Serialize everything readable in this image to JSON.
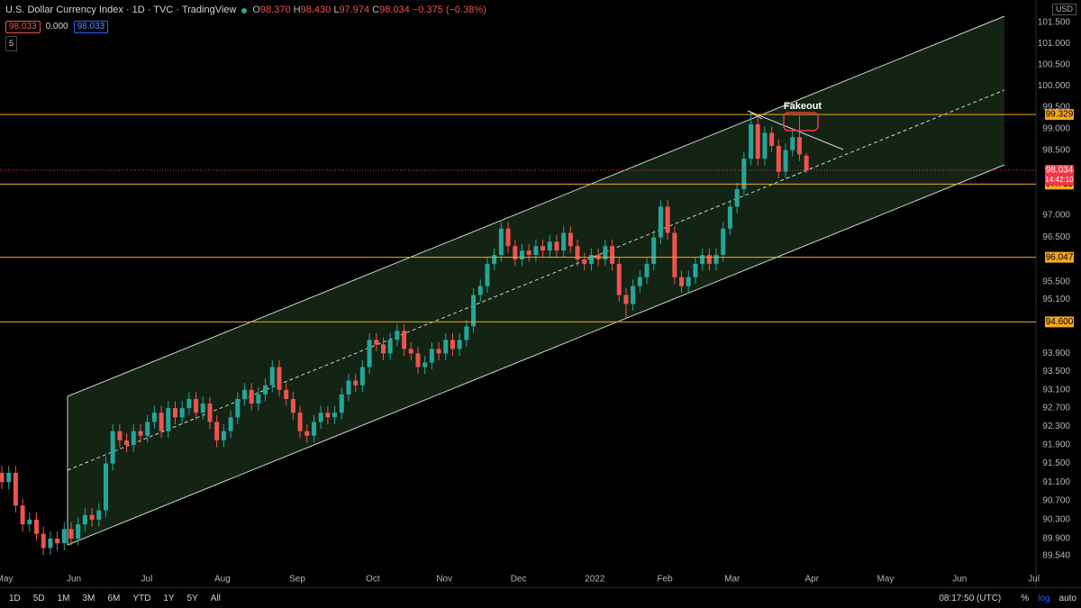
{
  "header": {
    "title": "U.S. Dollar Currency Index · 1D · TVC · TradingView",
    "legend": [
      {
        "key": "O",
        "value": "98.370"
      },
      {
        "key": "H",
        "value": "98.430"
      },
      {
        "key": "L",
        "value": "97.974"
      },
      {
        "key": "C",
        "value": "98.034"
      }
    ],
    "change": "−0.375 (−0.38%)",
    "indicators": [
      "98.033",
      "0.000",
      "98.033"
    ],
    "layers": "5",
    "currency": "USD"
  },
  "toolbar": {
    "ranges": [
      "1D",
      "5D",
      "1M",
      "3M",
      "6M",
      "YTD",
      "1Y",
      "5Y",
      "All"
    ],
    "time": "08:17:50 (UTC)",
    "scale_buttons": [
      "%",
      "log",
      "auto"
    ]
  },
  "chart_data": {
    "type": "candlestick",
    "log_scale": true,
    "grid": false,
    "colors": {
      "up": "#26a69a",
      "down": "#ef5350",
      "level": "#f5a623",
      "last": "#f23645"
    },
    "annotation": "Fakeout",
    "xlim": [
      -0.26,
      149.1
    ],
    "xticks": [
      {
        "value": 0.4,
        "label": "May"
      },
      {
        "value": 10.4,
        "label": "Jun"
      },
      {
        "value": 20.9,
        "label": "Jul"
      },
      {
        "value": 31.8,
        "label": "Aug"
      },
      {
        "value": 42.6,
        "label": "Sep"
      },
      {
        "value": 53.5,
        "label": "Oct"
      },
      {
        "value": 63.8,
        "label": "Nov"
      },
      {
        "value": 74.5,
        "label": "Dec"
      },
      {
        "value": 85.5,
        "label": "2022"
      },
      {
        "value": 95.6,
        "label": "Feb"
      },
      {
        "value": 105.3,
        "label": "Mar"
      },
      {
        "value": 116.8,
        "label": "Apr"
      },
      {
        "value": 127.4,
        "label": "May"
      },
      {
        "value": 138.1,
        "label": "Jun"
      },
      {
        "value": 148.8,
        "label": "Jul"
      }
    ],
    "ylim": [
      89.29,
      102.04
    ],
    "yticks": [
      {
        "value": 101.5,
        "label": "101.500"
      },
      {
        "value": 101,
        "label": "101.000"
      },
      {
        "value": 100.5,
        "label": "100.500"
      },
      {
        "value": 100,
        "label": "100.000"
      },
      {
        "value": 99.5,
        "label": "99.500"
      },
      {
        "value": 99,
        "label": "99.000"
      },
      {
        "value": 98.5,
        "label": "98.500"
      },
      {
        "value": 97,
        "label": "97.000"
      },
      {
        "value": 96.5,
        "label": "96.500"
      },
      {
        "value": 95.5,
        "label": "95.500"
      },
      {
        "value": 95.1,
        "label": "95.100"
      },
      {
        "value": 93.9,
        "label": "93.900"
      },
      {
        "value": 93.5,
        "label": "93.500"
      },
      {
        "value": 93.1,
        "label": "93.100"
      },
      {
        "value": 92.7,
        "label": "92.700"
      },
      {
        "value": 92.3,
        "label": "92.300"
      },
      {
        "value": 91.9,
        "label": "91.900"
      },
      {
        "value": 91.5,
        "label": "91.500"
      },
      {
        "value": 91.1,
        "label": "91.100"
      },
      {
        "value": 90.7,
        "label": "90.700"
      },
      {
        "value": 90.3,
        "label": "90.300"
      },
      {
        "value": 89.9,
        "label": "89.900"
      },
      {
        "value": 89.54,
        "label": "89.540"
      }
    ],
    "levels": [
      99.329,
      97.715,
      96.047,
      {
        "value": 94.6,
        "label": "94.600"
      }
    ],
    "last": {
      "value": 98.034,
      "countdown": "14:42:10"
    },
    "open": [
      91.3,
      91.1,
      91.3,
      90.6,
      90.2,
      90.3,
      90.0,
      89.7,
      89.9,
      89.8,
      90.1,
      89.9,
      90.2,
      90.4,
      90.3,
      90.5,
      91.5,
      92.2,
      92.0,
      91.9,
      92.2,
      92.1,
      92.4,
      92.6,
      92.2,
      92.7,
      92.5,
      92.7,
      92.9,
      92.6,
      92.8,
      92.4,
      92.0,
      92.2,
      92.5,
      92.9,
      93.1,
      92.8,
      93.0,
      93.2,
      93.6,
      93.1,
      92.9,
      92.6,
      92.2,
      92.1,
      92.4,
      92.6,
      92.5,
      92.6,
      93.0,
      93.3,
      93.2,
      93.6,
      94.2,
      94.1,
      93.9,
      94.2,
      94.4,
      94.0,
      93.9,
      93.6,
      93.7,
      94.0,
      93.9,
      94.2,
      94.0,
      94.2,
      94.5,
      95.2,
      95.4,
      95.9,
      96.1,
      96.7,
      96.3,
      96.0,
      96.2,
      96.1,
      96.3,
      96.2,
      96.4,
      96.2,
      96.6,
      96.3,
      96.0,
      95.9,
      96.1,
      96.0,
      96.3,
      95.9,
      95.2,
      95.0,
      95.4,
      95.6,
      95.9,
      96.5,
      97.2,
      96.6,
      95.6,
      95.4,
      95.6,
      95.9,
      96.1,
      95.9,
      96.1,
      96.7,
      97.2,
      97.6,
      98.3,
      99.1,
      98.3,
      98.9,
      98.6,
      98.0,
      98.5,
      98.8,
      98.37
    ],
    "high": [
      91.45,
      91.45,
      91.45,
      90.75,
      90.45,
      90.45,
      90.15,
      90.05,
      90.05,
      90.25,
      90.25,
      90.35,
      90.55,
      90.55,
      90.65,
      91.65,
      92.35,
      92.35,
      92.15,
      92.35,
      92.35,
      92.55,
      92.75,
      92.75,
      92.85,
      92.85,
      92.85,
      93.05,
      93.05,
      92.95,
      92.95,
      92.55,
      92.35,
      92.65,
      93.05,
      93.25,
      93.25,
      93.15,
      93.35,
      93.75,
      93.75,
      93.25,
      93.05,
      92.75,
      92.35,
      92.55,
      92.75,
      92.75,
      92.75,
      93.15,
      93.45,
      93.45,
      93.75,
      94.35,
      94.35,
      94.25,
      94.35,
      94.55,
      94.55,
      94.15,
      94.05,
      93.85,
      94.15,
      94.15,
      94.35,
      94.35,
      94.35,
      94.65,
      95.35,
      95.55,
      96.05,
      96.25,
      96.85,
      96.85,
      96.45,
      96.35,
      96.35,
      96.45,
      96.45,
      96.55,
      96.55,
      96.75,
      96.75,
      96.45,
      96.15,
      96.25,
      96.25,
      96.45,
      96.45,
      96.05,
      95.35,
      95.55,
      95.75,
      96.05,
      96.65,
      97.35,
      97.35,
      96.75,
      95.75,
      95.75,
      96.05,
      96.25,
      96.25,
      96.25,
      96.85,
      97.35,
      97.75,
      98.45,
      99.4,
      99.25,
      99.05,
      99.05,
      98.75,
      98.65,
      98.95,
      99.3,
      98.43
    ],
    "low": [
      90.95,
      90.95,
      90.45,
      90.05,
      90.05,
      89.85,
      89.55,
      89.55,
      89.65,
      89.65,
      89.75,
      89.75,
      90.05,
      90.15,
      90.15,
      90.35,
      91.35,
      91.85,
      91.75,
      91.75,
      91.95,
      91.95,
      92.25,
      92.05,
      92.05,
      92.35,
      92.35,
      92.55,
      92.45,
      92.45,
      92.25,
      91.85,
      91.85,
      92.05,
      92.35,
      92.75,
      92.65,
      92.65,
      92.85,
      93.05,
      92.95,
      92.75,
      92.45,
      92.05,
      91.95,
      91.95,
      92.25,
      92.35,
      92.35,
      92.45,
      92.85,
      93.05,
      93.05,
      93.45,
      93.95,
      93.75,
      93.75,
      94.05,
      93.85,
      93.75,
      93.45,
      93.45,
      93.55,
      93.75,
      93.75,
      93.85,
      93.85,
      94.05,
      94.35,
      95.05,
      95.25,
      95.75,
      95.95,
      96.15,
      95.85,
      95.85,
      95.95,
      95.95,
      96.05,
      96.05,
      96.05,
      96.05,
      96.15,
      95.85,
      95.75,
      95.75,
      95.85,
      95.85,
      95.75,
      95.05,
      94.7,
      94.85,
      95.25,
      95.45,
      95.75,
      96.35,
      96.45,
      95.45,
      95.25,
      95.25,
      95.45,
      95.75,
      95.75,
      95.75,
      95.95,
      96.55,
      97.05,
      97.45,
      98.15,
      98.15,
      98.15,
      98.45,
      97.85,
      97.85,
      98.35,
      98.25,
      97.974
    ],
    "close": [
      91.1,
      91.3,
      90.6,
      90.2,
      90.3,
      90.0,
      89.7,
      89.9,
      89.8,
      90.1,
      89.9,
      90.2,
      90.4,
      90.3,
      90.5,
      91.5,
      92.2,
      92.0,
      91.9,
      92.2,
      92.1,
      92.4,
      92.6,
      92.2,
      92.7,
      92.5,
      92.7,
      92.9,
      92.6,
      92.8,
      92.4,
      92.0,
      92.2,
      92.5,
      92.9,
      93.1,
      92.8,
      93.0,
      93.2,
      93.6,
      93.1,
      92.9,
      92.6,
      92.2,
      92.1,
      92.4,
      92.6,
      92.5,
      92.6,
      93.0,
      93.3,
      93.2,
      93.6,
      94.2,
      94.1,
      93.9,
      94.2,
      94.4,
      94.0,
      93.9,
      93.6,
      93.7,
      94.0,
      93.9,
      94.2,
      94.0,
      94.2,
      94.5,
      95.2,
      95.4,
      95.9,
      96.1,
      96.7,
      96.3,
      96.0,
      96.2,
      96.1,
      96.3,
      96.2,
      96.4,
      96.2,
      96.6,
      96.3,
      96.0,
      95.9,
      96.1,
      96.0,
      96.3,
      95.9,
      95.2,
      95.0,
      95.4,
      95.6,
      95.9,
      96.5,
      97.2,
      96.6,
      95.6,
      95.4,
      95.6,
      95.9,
      96.1,
      95.9,
      96.1,
      96.7,
      97.2,
      97.6,
      98.3,
      99.1,
      98.3,
      98.9,
      98.6,
      98.0,
      98.5,
      98.8,
      98.4,
      98.034
    ]
  }
}
